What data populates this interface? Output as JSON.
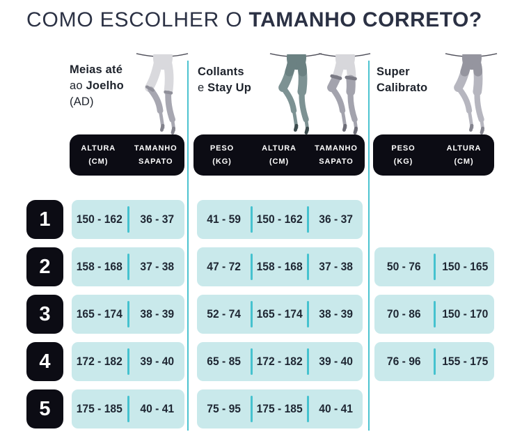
{
  "title": {
    "prefix": "COMO ESCOLHER O",
    "emphasis": "TAMANHO CORRETO?"
  },
  "colors": {
    "accent_teal": "#45c2cf",
    "divider_teal": "#4cc3d0",
    "cell_background": "#c9e9eb",
    "header_background": "#0c0c14",
    "title_text": "#2b3144",
    "cell_text": "#1f2733"
  },
  "sections": [
    {
      "id": "meias",
      "label_lines": [
        [
          {
            "t": "Meias até",
            "b": true
          }
        ],
        [
          {
            "t": "ao ",
            "b": false
          },
          {
            "t": "Joelho",
            "b": true
          }
        ],
        [
          {
            "t": "(AD)",
            "b": false
          }
        ]
      ],
      "columns": [
        {
          "line1": "ALTURA",
          "line2": "(CM)"
        },
        {
          "line1": "TAMANHO",
          "line2": "SAPATO"
        }
      ]
    },
    {
      "id": "collants",
      "label_lines": [
        [
          {
            "t": "Collants",
            "b": true
          }
        ],
        [
          {
            "t": "e ",
            "b": false
          },
          {
            "t": "Stay Up",
            "b": true
          }
        ]
      ],
      "columns": [
        {
          "line1": "PESO",
          "line2": "(KG)"
        },
        {
          "line1": "ALTURA",
          "line2": "(CM)"
        },
        {
          "line1": "TAMANHO",
          "line2": "SAPATO"
        }
      ]
    },
    {
      "id": "super",
      "label_lines": [
        [
          {
            "t": "Super",
            "b": true
          }
        ],
        [
          {
            "t": "Calibrato",
            "b": true
          }
        ]
      ],
      "columns": [
        {
          "line1": "PESO",
          "line2": "(KG)"
        },
        {
          "line1": "ALTURA",
          "line2": "(CM)"
        }
      ]
    }
  ],
  "rows": [
    {
      "num": "1",
      "meias": [
        "150 - 162",
        "36 - 37"
      ],
      "collants": [
        "41 - 59",
        "150 - 162",
        "36 - 37"
      ],
      "super": []
    },
    {
      "num": "2",
      "meias": [
        "158 - 168",
        "37 - 38"
      ],
      "collants": [
        "47 - 72",
        "158 - 168",
        "37 - 38"
      ],
      "super": [
        "50 - 76",
        "150 - 165"
      ]
    },
    {
      "num": "3",
      "meias": [
        "165 - 174",
        "38 - 39"
      ],
      "collants": [
        "52 - 74",
        "165 - 174",
        "38 - 39"
      ],
      "super": [
        "70 - 86",
        "150 - 170"
      ]
    },
    {
      "num": "4",
      "meias": [
        "172 - 182",
        "39 - 40"
      ],
      "collants": [
        "65 - 85",
        "172 - 182",
        "39 - 40"
      ],
      "super": [
        "76 - 96",
        "155 - 175"
      ]
    },
    {
      "num": "5",
      "meias": [
        "175 - 185",
        "40 - 41"
      ],
      "collants": [
        "75 - 95",
        "175 - 185",
        "40 - 41"
      ],
      "super": []
    }
  ],
  "chart_data": {
    "type": "table",
    "title": "COMO ESCOLHER O TAMANHO CORRETO?",
    "tables": [
      {
        "section": "Meias até ao Joelho (AD)",
        "columns": [
          "ALTURA (CM)",
          "TAMANHO SAPATO"
        ],
        "rows": [
          {
            "size": "1",
            "values": [
              "150 - 162",
              "36 - 37"
            ]
          },
          {
            "size": "2",
            "values": [
              "158 - 168",
              "37 - 38"
            ]
          },
          {
            "size": "3",
            "values": [
              "165 - 174",
              "38 - 39"
            ]
          },
          {
            "size": "4",
            "values": [
              "172 - 182",
              "39 - 40"
            ]
          },
          {
            "size": "5",
            "values": [
              "175 - 185",
              "40 - 41"
            ]
          }
        ]
      },
      {
        "section": "Collants e Stay Up",
        "columns": [
          "PESO (KG)",
          "ALTURA (CM)",
          "TAMANHO SAPATO"
        ],
        "rows": [
          {
            "size": "1",
            "values": [
              "41 - 59",
              "150 - 162",
              "36 - 37"
            ]
          },
          {
            "size": "2",
            "values": [
              "47 - 72",
              "158 - 168",
              "37 - 38"
            ]
          },
          {
            "size": "3",
            "values": [
              "52 - 74",
              "165 - 174",
              "38 - 39"
            ]
          },
          {
            "size": "4",
            "values": [
              "65 - 85",
              "172 - 182",
              "39 - 40"
            ]
          },
          {
            "size": "5",
            "values": [
              "75 - 95",
              "175 - 185",
              "40 - 41"
            ]
          }
        ]
      },
      {
        "section": "Super Calibrato",
        "columns": [
          "PESO (KG)",
          "ALTURA (CM)"
        ],
        "rows": [
          {
            "size": "2",
            "values": [
              "50 - 76",
              "150 - 165"
            ]
          },
          {
            "size": "3",
            "values": [
              "70 - 86",
              "150 - 170"
            ]
          },
          {
            "size": "4",
            "values": [
              "76 - 96",
              "155 - 175"
            ]
          }
        ]
      }
    ]
  }
}
